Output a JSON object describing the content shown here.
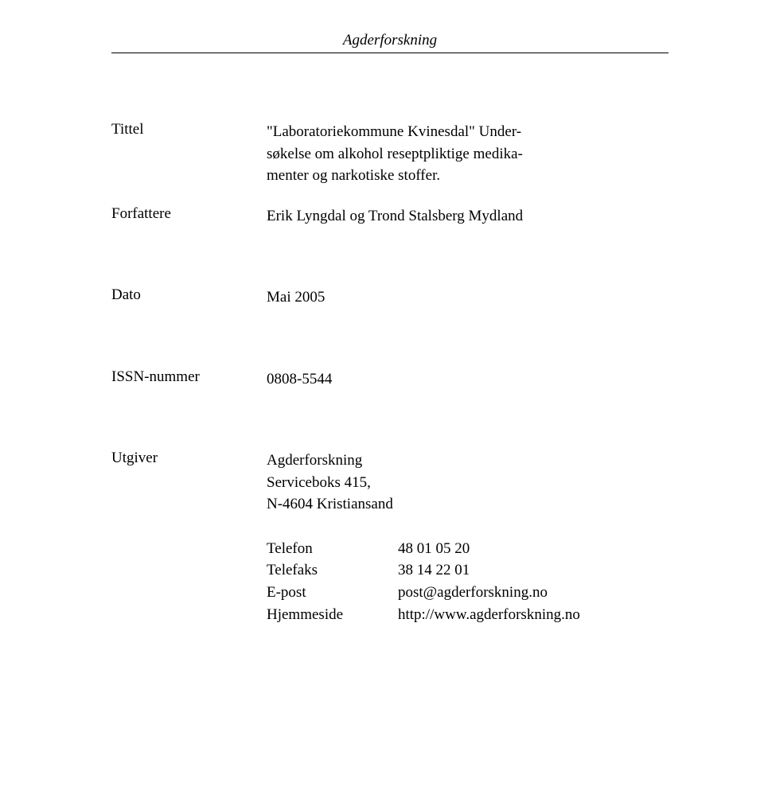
{
  "header": {
    "org": "Agderforskning"
  },
  "title_row": {
    "label": "Tittel",
    "value_line1": "\"Laboratoriekommune Kvinesdal\" Under-",
    "value_line2": "søkelse om alkohol reseptpliktige medika-",
    "value_line3": "menter og narkotiske stoffer."
  },
  "authors_row": {
    "label": "Forfattere",
    "value": "Erik Lyngdal og Trond Stalsberg Mydland"
  },
  "date_row": {
    "label": "Dato",
    "value": "Mai 2005"
  },
  "issn_row": {
    "label": "ISSN-nummer",
    "value": "0808-5544"
  },
  "publisher_row": {
    "label": "Utgiver",
    "name": "Agderforskning",
    "address1": "Serviceboks 415,",
    "address2": "N-4604 Kristiansand"
  },
  "contact": {
    "phone_label": "Telefon",
    "phone_value": "48 01 05 20",
    "fax_label": "Telefaks",
    "fax_value": "38 14 22 01",
    "email_label": "E-post",
    "email_value": "post@agderforskning.no",
    "web_label": "Hjemmeside",
    "web_value": "http://www.agderforskning.no"
  }
}
